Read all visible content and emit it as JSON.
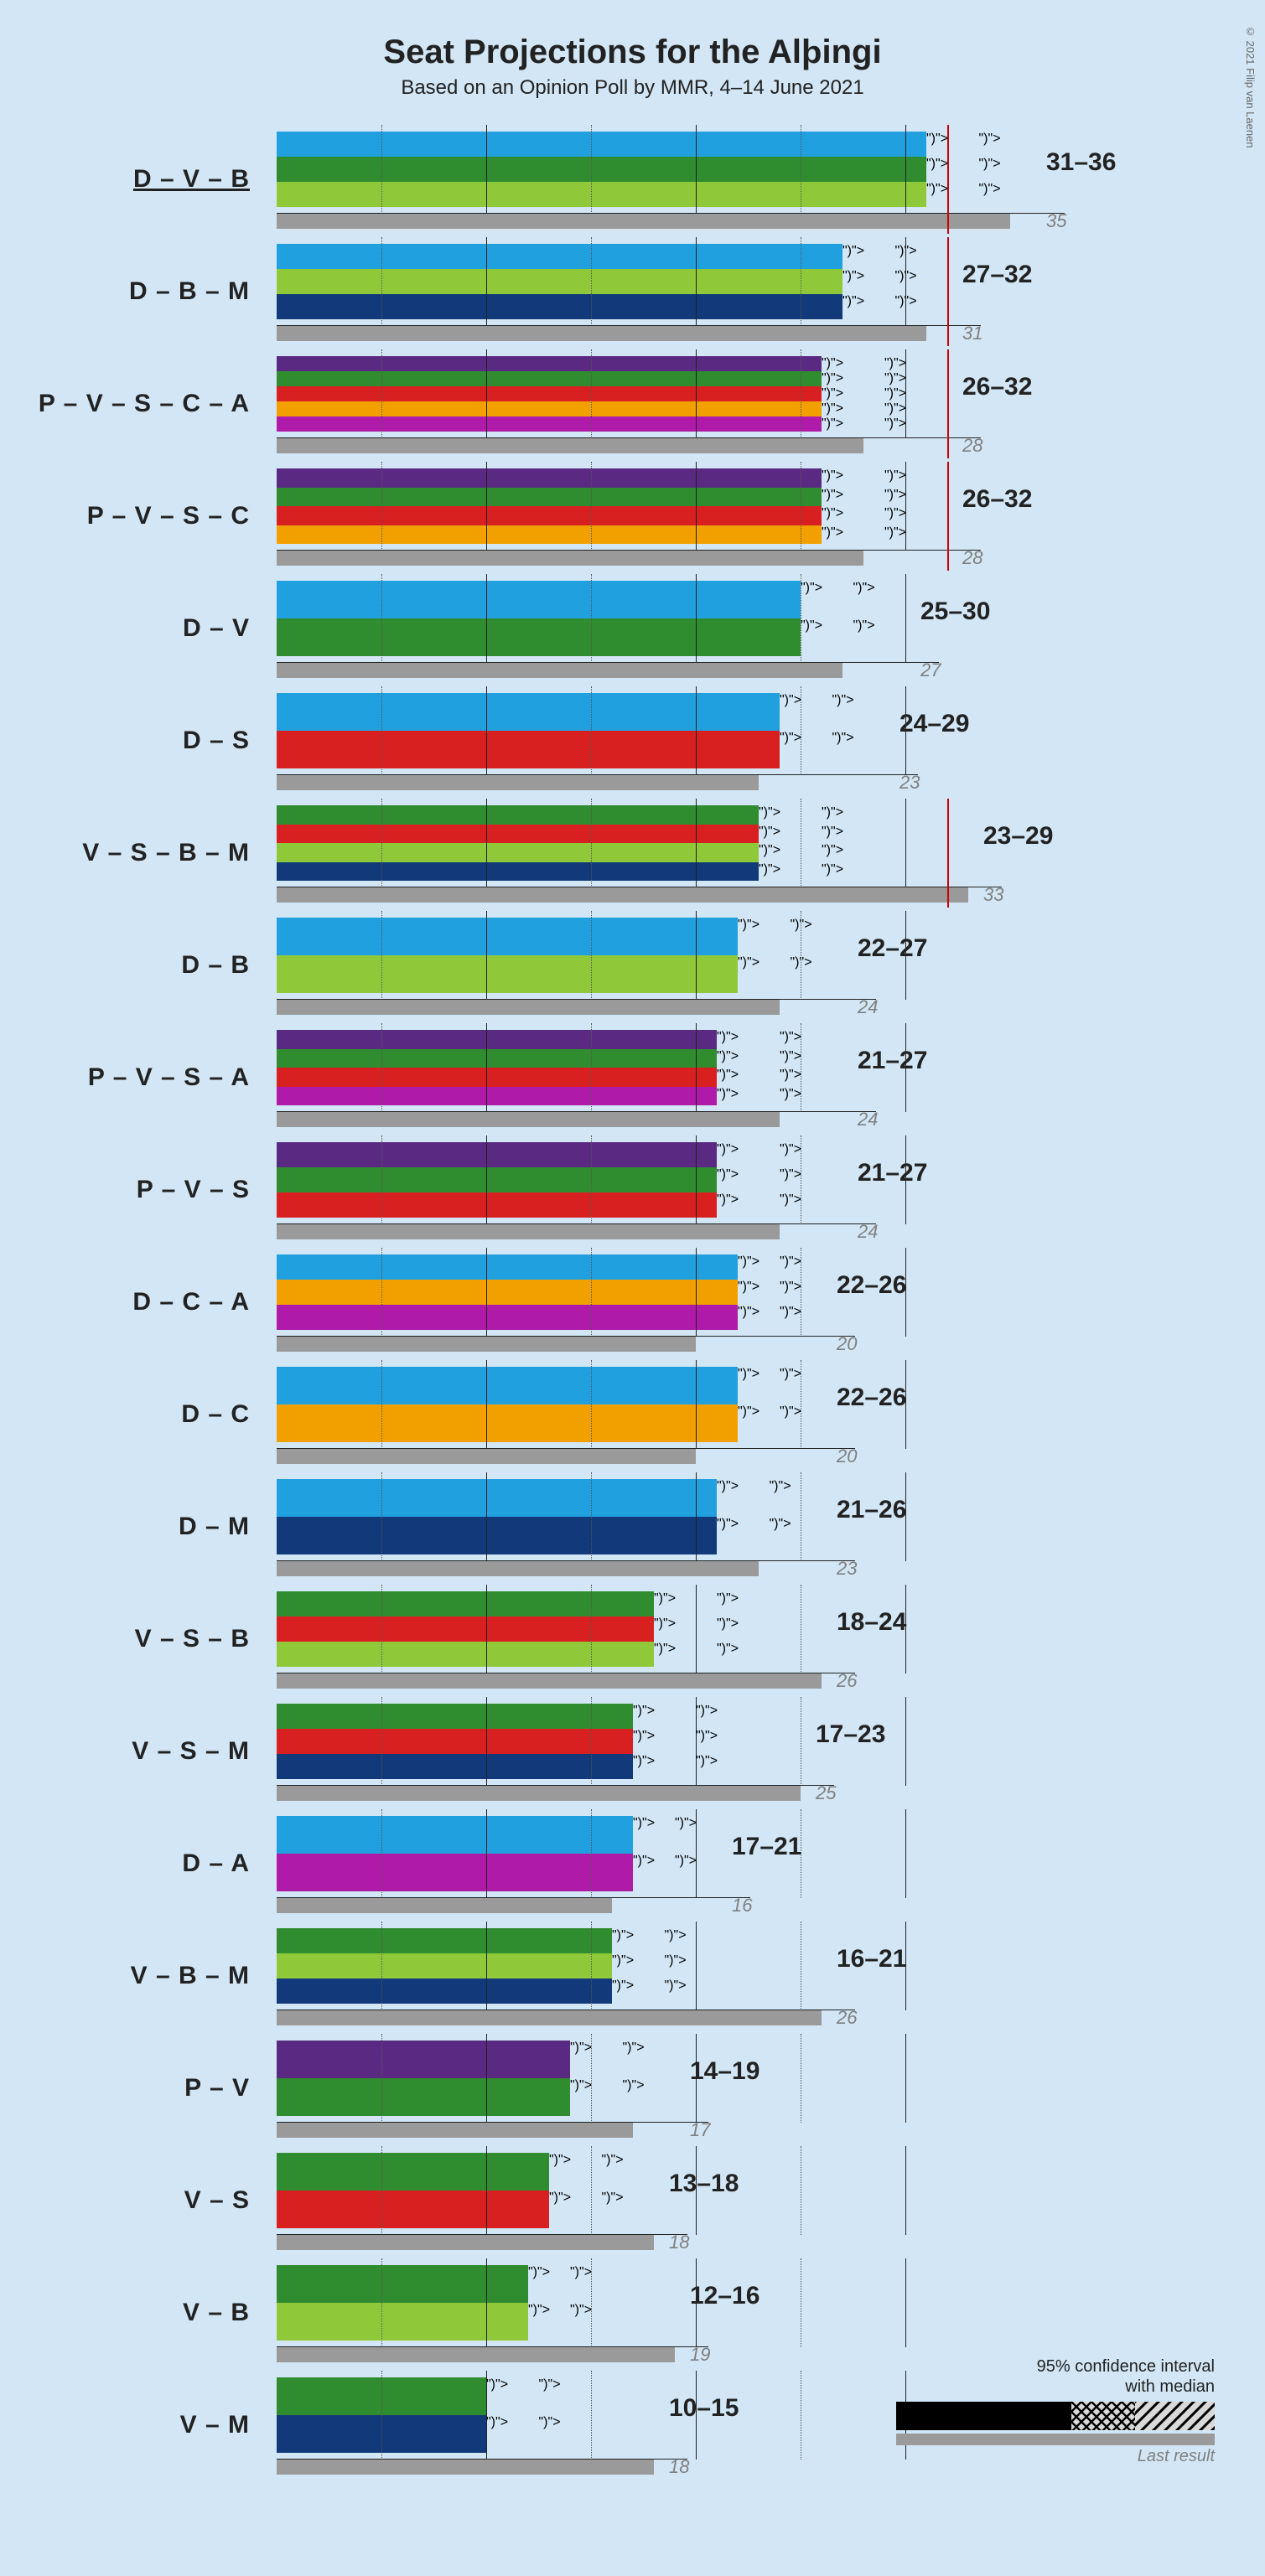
{
  "title": "Seat Projections for the Alþingi",
  "subtitle": "Based on an Opinion Poll by MMR, 4–14 June 2021",
  "copyright": "© 2021 Filip van Laenen",
  "x_max": 40,
  "majority": 32,
  "major_ticks": [
    0,
    10,
    20,
    30
  ],
  "minor_ticks": [
    5,
    15,
    25
  ],
  "party_colors": {
    "D": "#21a0e0",
    "V": "#2f8c2f",
    "B": "#8fc93a",
    "M": "#123a7a",
    "P": "#5a2a82",
    "S": "#d92020",
    "C": "#f2a000",
    "A": "#b01aa8"
  },
  "legend": {
    "title": "95% confidence interval\nwith median",
    "last_result": "Last result"
  },
  "rows": [
    {
      "label": "D – V – B",
      "parties": [
        "D",
        "V",
        "B"
      ],
      "low": 31,
      "med": 33.5,
      "high": 36,
      "last": 35,
      "underline": true
    },
    {
      "label": "D – B – M",
      "parties": [
        "D",
        "B",
        "M"
      ],
      "low": 27,
      "med": 29.5,
      "high": 32,
      "last": 31,
      "underline": false
    },
    {
      "label": "P – V – S – C – A",
      "parties": [
        "P",
        "V",
        "S",
        "C",
        "A"
      ],
      "low": 26,
      "med": 29,
      "high": 32,
      "last": 28,
      "underline": false
    },
    {
      "label": "P – V – S – C",
      "parties": [
        "P",
        "V",
        "S",
        "C"
      ],
      "low": 26,
      "med": 29,
      "high": 32,
      "last": 28,
      "underline": false
    },
    {
      "label": "D – V",
      "parties": [
        "D",
        "V"
      ],
      "low": 25,
      "med": 27.5,
      "high": 30,
      "last": 27,
      "underline": false
    },
    {
      "label": "D – S",
      "parties": [
        "D",
        "S"
      ],
      "low": 24,
      "med": 26.5,
      "high": 29,
      "last": 23,
      "underline": false
    },
    {
      "label": "V – S – B – M",
      "parties": [
        "V",
        "S",
        "B",
        "M"
      ],
      "low": 23,
      "med": 26,
      "high": 29,
      "last": 33,
      "underline": false
    },
    {
      "label": "D – B",
      "parties": [
        "D",
        "B"
      ],
      "low": 22,
      "med": 24.5,
      "high": 27,
      "last": 24,
      "underline": false
    },
    {
      "label": "P – V – S – A",
      "parties": [
        "P",
        "V",
        "S",
        "A"
      ],
      "low": 21,
      "med": 24,
      "high": 27,
      "last": 24,
      "underline": false
    },
    {
      "label": "P – V – S",
      "parties": [
        "P",
        "V",
        "S"
      ],
      "low": 21,
      "med": 24,
      "high": 27,
      "last": 24,
      "underline": false
    },
    {
      "label": "D – C – A",
      "parties": [
        "D",
        "C",
        "A"
      ],
      "low": 22,
      "med": 24,
      "high": 26,
      "last": 20,
      "underline": false
    },
    {
      "label": "D – C",
      "parties": [
        "D",
        "C"
      ],
      "low": 22,
      "med": 24,
      "high": 26,
      "last": 20,
      "underline": false
    },
    {
      "label": "D – M",
      "parties": [
        "D",
        "M"
      ],
      "low": 21,
      "med": 23.5,
      "high": 26,
      "last": 23,
      "underline": false
    },
    {
      "label": "V – S – B",
      "parties": [
        "V",
        "S",
        "B"
      ],
      "low": 18,
      "med": 21,
      "high": 24,
      "last": 26,
      "underline": false
    },
    {
      "label": "V – S – M",
      "parties": [
        "V",
        "S",
        "M"
      ],
      "low": 17,
      "med": 20,
      "high": 23,
      "last": 25,
      "underline": false
    },
    {
      "label": "D – A",
      "parties": [
        "D",
        "A"
      ],
      "low": 17,
      "med": 19,
      "high": 21,
      "last": 16,
      "underline": false
    },
    {
      "label": "V – B – M",
      "parties": [
        "V",
        "B",
        "M"
      ],
      "low": 16,
      "med": 18.5,
      "high": 21,
      "last": 26,
      "underline": false
    },
    {
      "label": "P – V",
      "parties": [
        "P",
        "V"
      ],
      "low": 14,
      "med": 16.5,
      "high": 19,
      "last": 17,
      "underline": false
    },
    {
      "label": "V – S",
      "parties": [
        "V",
        "S"
      ],
      "low": 13,
      "med": 15.5,
      "high": 18,
      "last": 18,
      "underline": false
    },
    {
      "label": "V – B",
      "parties": [
        "V",
        "B"
      ],
      "low": 12,
      "med": 14,
      "high": 16,
      "last": 19,
      "underline": false
    },
    {
      "label": "V – M",
      "parties": [
        "V",
        "M"
      ],
      "low": 10,
      "med": 12.5,
      "high": 15,
      "last": 18,
      "underline": false
    }
  ]
}
